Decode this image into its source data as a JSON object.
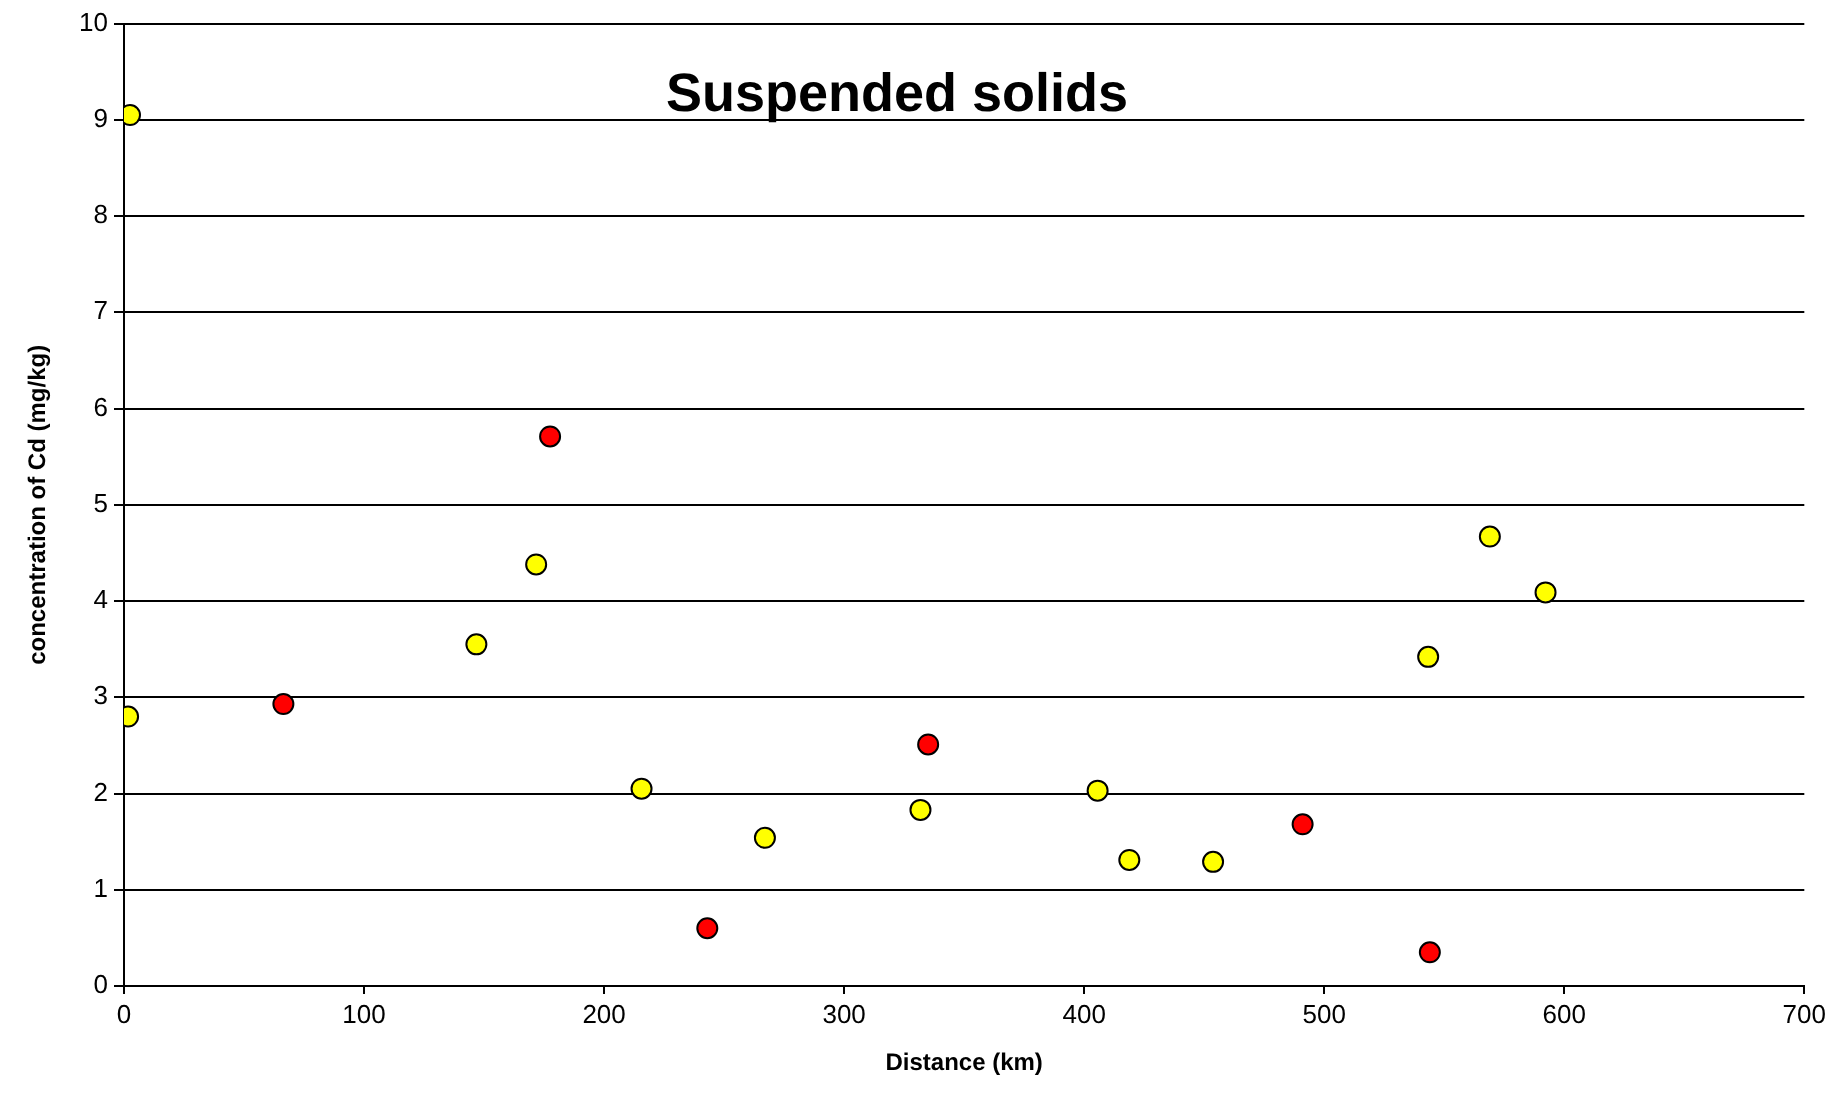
{
  "chart_data": {
    "type": "scatter",
    "title": "Suspended solids",
    "xlabel": "Distance (km)",
    "ylabel": "concentration of Cd (mg/kg)",
    "series": [
      {
        "color": "#ffff00",
        "x": [
          2.5,
          1.7,
          146.8,
          171.7,
          215.6,
          267,
          331.8,
          405.6,
          418.8,
          453.7,
          543.3,
          569,
          592.2
        ],
        "values": [
          9.05,
          2.8,
          3.55,
          4.38,
          2.05,
          1.54,
          1.83,
          2.03,
          1.31,
          1.29,
          3.42,
          4.67,
          4.09
        ]
      },
      {
        "color": "#ff0000",
        "x": [
          66.4,
          177.5,
          243,
          335,
          491,
          544
        ],
        "values": [
          2.93,
          5.71,
          0.6,
          2.51,
          1.68,
          0.35
        ]
      }
    ],
    "xlim": [
      0,
      700
    ],
    "xticks": [
      0,
      100,
      200,
      300,
      400,
      500,
      600,
      700
    ],
    "ylim": [
      0,
      10
    ],
    "yticks": [
      0,
      1,
      2,
      3,
      4,
      5,
      6,
      7,
      8,
      9,
      10
    ],
    "grid": "y",
    "legend": false,
    "marker": "circle"
  }
}
